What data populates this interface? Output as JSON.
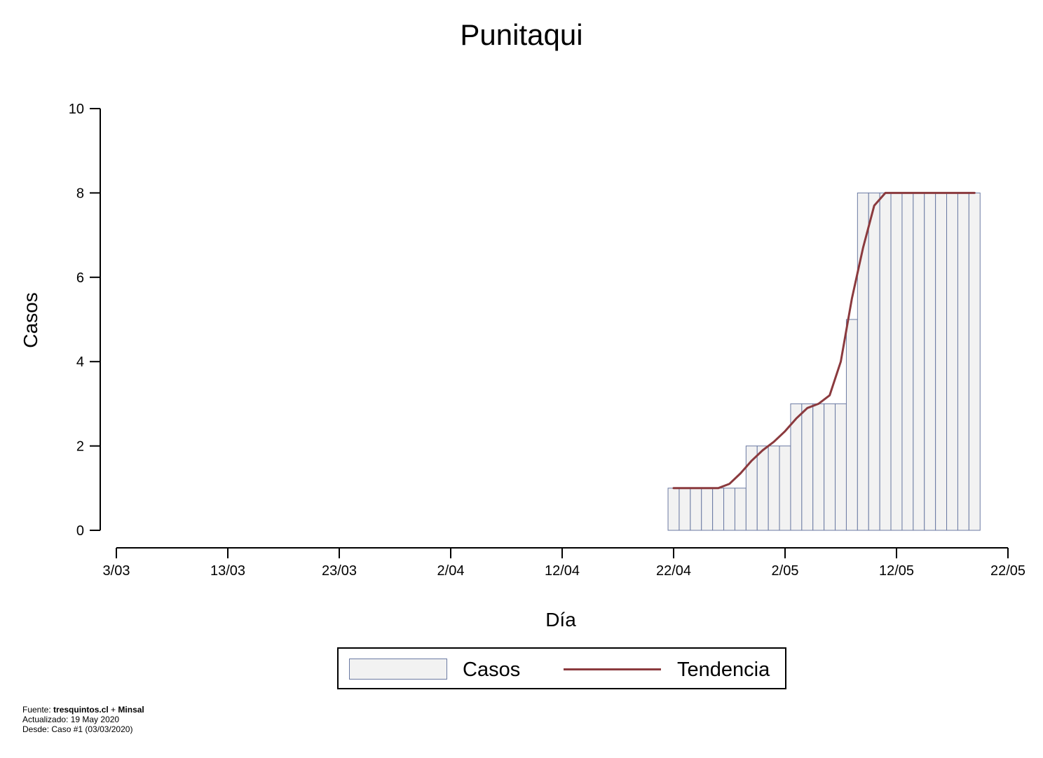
{
  "chart_data": {
    "type": "bar",
    "title": "Punitaqui",
    "xlabel": "Día",
    "ylabel": "Casos",
    "x_ticks": [
      "3/03",
      "13/03",
      "23/03",
      "2/04",
      "12/04",
      "22/04",
      "2/05",
      "12/05",
      "22/05"
    ],
    "y_ticks": [
      "0",
      "2",
      "4",
      "6",
      "8",
      "10"
    ],
    "ylim": [
      0,
      10
    ],
    "xlim": [
      "03/03/2020",
      "22/05/2020"
    ],
    "categories": [
      "22/04",
      "23/04",
      "24/04",
      "25/04",
      "26/04",
      "27/04",
      "28/04",
      "29/04",
      "30/04",
      "1/05",
      "2/05",
      "3/05",
      "4/05",
      "5/05",
      "6/05",
      "7/05",
      "8/05",
      "9/05",
      "10/05",
      "11/05",
      "12/05",
      "13/05",
      "14/05",
      "15/05",
      "16/05",
      "17/05",
      "18/05",
      "19/05"
    ],
    "series": [
      {
        "name": "Casos",
        "values": [
          1,
          1,
          1,
          1,
          1,
          1,
          1,
          2,
          2,
          2,
          2,
          3,
          3,
          3,
          3,
          3,
          5,
          8,
          8,
          8,
          8,
          8,
          8,
          8,
          8,
          8,
          8,
          8
        ]
      },
      {
        "name": "Tendencia",
        "values": [
          1,
          1,
          1,
          1,
          1,
          1.1,
          1.35,
          1.65,
          1.9,
          2.1,
          2.35,
          2.65,
          2.9,
          3.0,
          3.2,
          4.0,
          5.5,
          6.7,
          7.7,
          8,
          8,
          8,
          8,
          8,
          8,
          8,
          8,
          8
        ]
      }
    ],
    "colors": {
      "bar_fill": "#f2f2f2",
      "bar_edge": "#6b7aa3",
      "trend": "#8b3a3e"
    },
    "legend": {
      "position": "bottom-center",
      "entries": [
        "Casos",
        "Tendencia"
      ]
    },
    "grid": false
  },
  "footer": {
    "fuente_prefix": "Fuente: ",
    "fuente_bold1": "tresquintos.cl",
    "fuente_mid": " + ",
    "fuente_bold2": "Minsal",
    "actualizado": "Actualizado: 19 May 2020",
    "desde": "Desde: Caso #1  (03/03/2020)"
  }
}
